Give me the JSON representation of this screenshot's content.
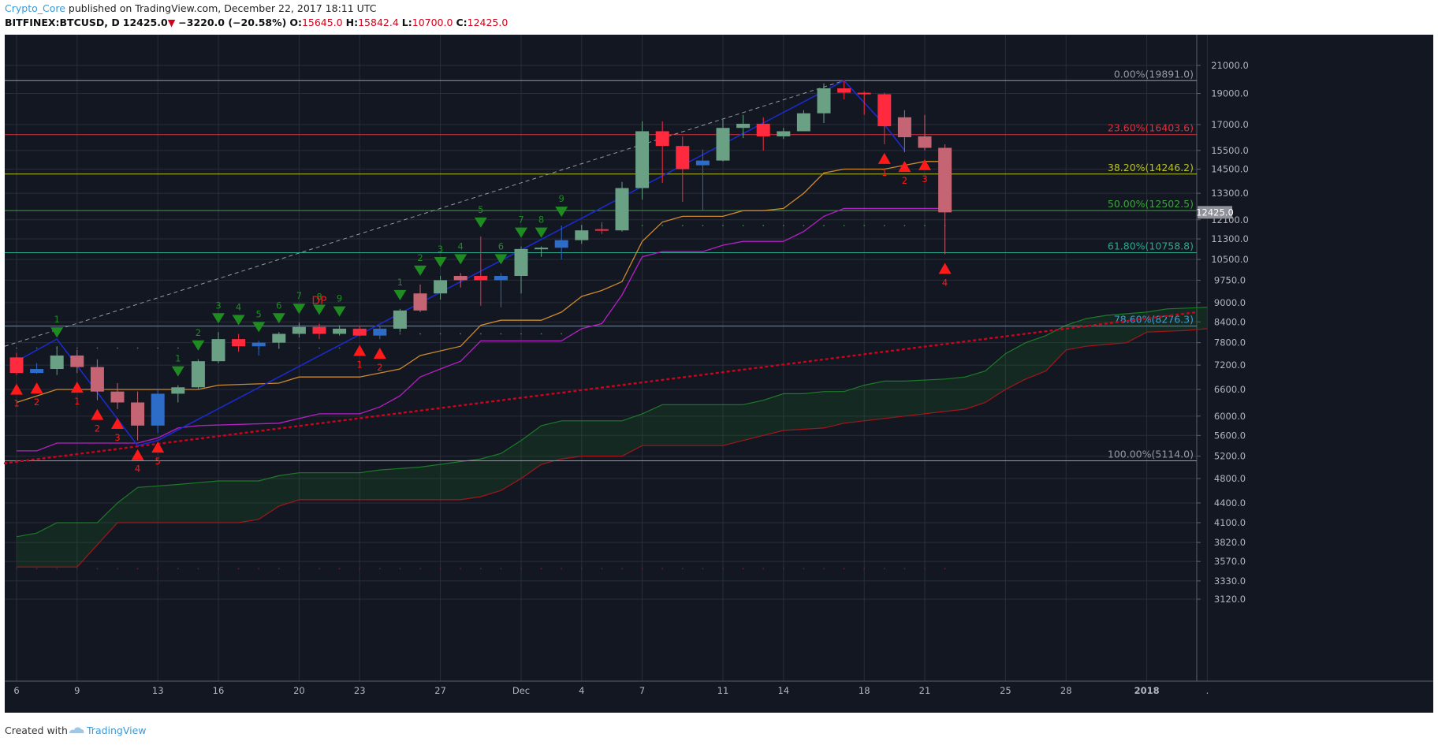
{
  "header": {
    "author": "Crypto_Core",
    "published_text": "published on TradingView.com, December 22, 2017 18:11 UTC",
    "symbol": "BITFINEX:BTCUSD, D",
    "last": "12425.0",
    "change": "−3220.0 (−20.58%)",
    "o_label": "O:",
    "o_value": "15645.0",
    "h_label": "H:",
    "h_value": "15842.4",
    "l_label": "L:",
    "l_value": "10700.0",
    "c_label": "C:",
    "c_value": "12425.0"
  },
  "footer": {
    "created_with": "Created with",
    "brand": "TradingView"
  },
  "colors": {
    "bg": "#131722",
    "grid": "#2a2e39",
    "up": "#6aa084",
    "down": "#ff2a3d",
    "up_alt": "#2d6cc7",
    "down_alt": "#c56472",
    "tenkan": "#cc8a2d",
    "kijun": "#b61fc7",
    "cloud_up": "#1d7a28",
    "cloud_down": "#a3161a",
    "td_buy": "#1f8c22",
    "td_sell": "#ff1a1a",
    "trend_red": "#d0021b",
    "dotted_fib": "#9598a1"
  },
  "chart_data": {
    "type": "candlestick",
    "symbol": "BITFINEX:BTCUSD",
    "interval": "D",
    "price_scale": "log",
    "y_ticks": [
      21000,
      19000,
      17000,
      15500,
      14500,
      13300,
      12100,
      11300,
      10500,
      9750,
      9000,
      8400,
      7800,
      7200,
      6600,
      6000,
      5600,
      5200,
      4800,
      4400,
      4100,
      3820,
      3570,
      3330,
      3120
    ],
    "y_tick_labels": [
      "21000.0",
      "19000.0",
      "17000.0",
      "15500.0",
      "14500.0",
      "13300.0",
      "12100.0",
      "11300.0",
      "10500.0",
      "9750.0",
      "9000.0",
      "8400.0",
      "7800.0",
      "7200.0",
      "6600.0",
      "6000.0",
      "5600.0",
      "5200.0",
      "4800.0",
      "4400.0",
      "4100.0",
      "3820.0",
      "3570.0",
      "3330.0",
      "3120.0"
    ],
    "last_price_label": "12425.0",
    "x_labels": [
      {
        "i": 0,
        "t": "6"
      },
      {
        "i": 3,
        "t": "9"
      },
      {
        "i": 7,
        "t": "13"
      },
      {
        "i": 10,
        "t": "16"
      },
      {
        "i": 14,
        "t": "20"
      },
      {
        "i": 17,
        "t": "23"
      },
      {
        "i": 21,
        "t": "27"
      },
      {
        "i": 25,
        "t": "Dec"
      },
      {
        "i": 28,
        "t": "4"
      },
      {
        "i": 31,
        "t": "7"
      },
      {
        "i": 35,
        "t": "11"
      },
      {
        "i": 38,
        "t": "14"
      },
      {
        "i": 42,
        "t": "18"
      },
      {
        "i": 45,
        "t": "21"
      },
      {
        "i": 49,
        "t": "25"
      },
      {
        "i": 52,
        "t": "28"
      },
      {
        "i": 56,
        "t": "2018"
      },
      {
        "i": 59,
        "t": "."
      }
    ],
    "fib_levels": [
      {
        "label": "0.00%(19891.0)",
        "price": 19891,
        "color": "#9598a1"
      },
      {
        "label": "23.60%(16403.6)",
        "price": 16403.6,
        "color": "#e0313e"
      },
      {
        "label": "38.20%(14246.2)",
        "price": 14246.2,
        "color": "#b7c02a"
      },
      {
        "label": "50.00%(12502.5)",
        "price": 12502.5,
        "color": "#3aa63a"
      },
      {
        "label": "61.80%(10758.8)",
        "price": 10758.8,
        "color": "#2aa88e"
      },
      {
        "label": "78.60%(8276.3)",
        "price": 8276.3,
        "color": "#3f9dd6"
      },
      {
        "label": "100.00%(5114.0)",
        "price": 5114,
        "color": "#9598a1"
      }
    ],
    "candles": [
      {
        "o": 7400,
        "h": 7520,
        "l": 6950,
        "c": 7000,
        "col": "down"
      },
      {
        "o": 7000,
        "h": 7250,
        "l": 6980,
        "c": 7100,
        "col": "up_alt"
      },
      {
        "o": 7100,
        "h": 7700,
        "l": 6950,
        "c": 7450,
        "col": "up"
      },
      {
        "o": 7450,
        "h": 7600,
        "l": 7000,
        "c": 7150,
        "col": "down_alt"
      },
      {
        "o": 7150,
        "h": 7350,
        "l": 6350,
        "c": 6550,
        "col": "down_alt"
      },
      {
        "o": 6550,
        "h": 6750,
        "l": 6150,
        "c": 6300,
        "col": "down_alt"
      },
      {
        "o": 6300,
        "h": 6550,
        "l": 5500,
        "c": 5800,
        "col": "down_alt"
      },
      {
        "o": 5800,
        "h": 6600,
        "l": 5650,
        "c": 6500,
        "col": "up_alt"
      },
      {
        "o": 6500,
        "h": 6700,
        "l": 6300,
        "c": 6650,
        "col": "up"
      },
      {
        "o": 6650,
        "h": 7350,
        "l": 6600,
        "c": 7300,
        "col": "up"
      },
      {
        "o": 7300,
        "h": 8100,
        "l": 7250,
        "c": 7900,
        "col": "up"
      },
      {
        "o": 7900,
        "h": 8050,
        "l": 7550,
        "c": 7700,
        "col": "down"
      },
      {
        "o": 7700,
        "h": 7850,
        "l": 7450,
        "c": 7800,
        "col": "up_alt"
      },
      {
        "o": 7800,
        "h": 8100,
        "l": 7650,
        "c": 8050,
        "col": "up"
      },
      {
        "o": 8050,
        "h": 8380,
        "l": 7950,
        "c": 8250,
        "col": "up"
      },
      {
        "o": 8250,
        "h": 8350,
        "l": 7900,
        "c": 8050,
        "col": "down"
      },
      {
        "o": 8050,
        "h": 8300,
        "l": 8000,
        "c": 8200,
        "col": "up"
      },
      {
        "o": 8200,
        "h": 8280,
        "l": 7980,
        "c": 8000,
        "col": "down"
      },
      {
        "o": 8000,
        "h": 8260,
        "l": 7900,
        "c": 8200,
        "col": "up_alt"
      },
      {
        "o": 8200,
        "h": 8800,
        "l": 8100,
        "c": 8750,
        "col": "up"
      },
      {
        "o": 8750,
        "h": 9600,
        "l": 8700,
        "c": 9300,
        "col": "down_alt"
      },
      {
        "o": 9300,
        "h": 9900,
        "l": 9100,
        "c": 9750,
        "col": "up"
      },
      {
        "o": 9750,
        "h": 10000,
        "l": 9500,
        "c": 9900,
        "col": "down_alt"
      },
      {
        "o": 9900,
        "h": 11400,
        "l": 8900,
        "c": 9750,
        "col": "down"
      },
      {
        "o": 9750,
        "h": 10000,
        "l": 8850,
        "c": 9900,
        "col": "up_alt"
      },
      {
        "o": 9900,
        "h": 11000,
        "l": 9300,
        "c": 10900,
        "col": "up"
      },
      {
        "o": 10900,
        "h": 11000,
        "l": 10600,
        "c": 10950,
        "col": "up"
      },
      {
        "o": 10950,
        "h": 11850,
        "l": 10500,
        "c": 11250,
        "col": "up_alt"
      },
      {
        "o": 11250,
        "h": 11850,
        "l": 11100,
        "c": 11650,
        "col": "up"
      },
      {
        "o": 11700,
        "h": 12000,
        "l": 11500,
        "c": 11650,
        "col": "down"
      },
      {
        "o": 11650,
        "h": 13850,
        "l": 11600,
        "c": 13550,
        "col": "up"
      },
      {
        "o": 13550,
        "h": 17200,
        "l": 13000,
        "c": 16600,
        "col": "up"
      },
      {
        "o": 16600,
        "h": 17200,
        "l": 13800,
        "c": 15750,
        "col": "down"
      },
      {
        "o": 15750,
        "h": 16300,
        "l": 12900,
        "c": 14500,
        "col": "down"
      },
      {
        "o": 14700,
        "h": 15550,
        "l": 12500,
        "c": 14950,
        "col": "up_alt"
      },
      {
        "o": 14950,
        "h": 17300,
        "l": 14900,
        "c": 16800,
        "col": "up"
      },
      {
        "o": 16800,
        "h": 17600,
        "l": 16200,
        "c": 17050,
        "col": "up"
      },
      {
        "o": 17050,
        "h": 17450,
        "l": 15500,
        "c": 16300,
        "col": "down"
      },
      {
        "o": 16300,
        "h": 16800,
        "l": 16150,
        "c": 16600,
        "col": "up"
      },
      {
        "o": 16600,
        "h": 17900,
        "l": 16600,
        "c": 17700,
        "col": "up"
      },
      {
        "o": 17700,
        "h": 19700,
        "l": 17100,
        "c": 19350,
        "col": "up"
      },
      {
        "o": 19350,
        "h": 19891,
        "l": 18600,
        "c": 19050,
        "col": "down"
      },
      {
        "o": 19050,
        "h": 19150,
        "l": 17600,
        "c": 18950,
        "col": "down"
      },
      {
        "o": 18950,
        "h": 19050,
        "l": 15850,
        "c": 16900,
        "col": "down"
      },
      {
        "o": 17450,
        "h": 17900,
        "l": 15400,
        "c": 16250,
        "col": "down_alt"
      },
      {
        "o": 16300,
        "h": 17600,
        "l": 15500,
        "c": 15645,
        "col": "down_alt"
      },
      {
        "o": 15645,
        "h": 15842.4,
        "l": 10700,
        "c": 12425,
        "col": "down_alt"
      }
    ],
    "tenkan": [
      [
        0,
        6300
      ],
      [
        2,
        6600
      ],
      [
        5,
        6600
      ],
      [
        9,
        6600
      ],
      [
        10,
        6700
      ],
      [
        13,
        6750
      ],
      [
        14,
        6900
      ],
      [
        17,
        6900
      ],
      [
        19,
        7100
      ],
      [
        20,
        7450
      ],
      [
        22,
        7700
      ],
      [
        23,
        8300
      ],
      [
        24,
        8450
      ],
      [
        26,
        8450
      ],
      [
        27,
        8700
      ],
      [
        28,
        9200
      ],
      [
        29,
        9400
      ],
      [
        30,
        9700
      ],
      [
        31,
        11200
      ],
      [
        32,
        12000
      ],
      [
        33,
        12250
      ],
      [
        35,
        12250
      ],
      [
        36,
        12500
      ],
      [
        37,
        12500
      ],
      [
        38,
        12600
      ],
      [
        39,
        13300
      ],
      [
        40,
        14300
      ],
      [
        41,
        14500
      ],
      [
        42,
        14500
      ],
      [
        43,
        14500
      ],
      [
        44,
        14700
      ],
      [
        45,
        14900
      ],
      [
        46,
        14900
      ]
    ],
    "kijun": [
      [
        0,
        5300
      ],
      [
        1,
        5300
      ],
      [
        2,
        5450
      ],
      [
        6,
        5450
      ],
      [
        7,
        5550
      ],
      [
        8,
        5750
      ],
      [
        9,
        5800
      ],
      [
        13,
        5850
      ],
      [
        14,
        5950
      ],
      [
        15,
        6050
      ],
      [
        17,
        6050
      ],
      [
        18,
        6200
      ],
      [
        19,
        6450
      ],
      [
        20,
        6900
      ],
      [
        21,
        7100
      ],
      [
        22,
        7300
      ],
      [
        23,
        7850
      ],
      [
        27,
        7850
      ],
      [
        28,
        8200
      ],
      [
        29,
        8350
      ],
      [
        30,
        9250
      ],
      [
        31,
        10600
      ],
      [
        32,
        10800
      ],
      [
        34,
        10800
      ],
      [
        35,
        11050
      ],
      [
        36,
        11200
      ],
      [
        37,
        11200
      ],
      [
        38,
        11200
      ],
      [
        39,
        11600
      ],
      [
        40,
        12250
      ],
      [
        41,
        12600
      ],
      [
        46,
        12600
      ]
    ],
    "cloud_a": [
      [
        0,
        3900
      ],
      [
        1,
        3950
      ],
      [
        2,
        4100
      ],
      [
        4,
        4100
      ],
      [
        5,
        4400
      ],
      [
        6,
        4650
      ],
      [
        8,
        4700
      ],
      [
        10,
        4760
      ],
      [
        12,
        4760
      ],
      [
        13,
        4850
      ],
      [
        14,
        4900
      ],
      [
        16,
        4900
      ],
      [
        17,
        4900
      ],
      [
        18,
        4950
      ],
      [
        20,
        5000
      ],
      [
        21,
        5050
      ],
      [
        22,
        5100
      ],
      [
        23,
        5150
      ],
      [
        24,
        5250
      ],
      [
        25,
        5500
      ],
      [
        26,
        5800
      ],
      [
        27,
        5900
      ],
      [
        30,
        5900
      ],
      [
        31,
        6050
      ],
      [
        32,
        6250
      ],
      [
        36,
        6250
      ],
      [
        37,
        6350
      ],
      [
        38,
        6500
      ],
      [
        39,
        6500
      ],
      [
        40,
        6550
      ],
      [
        41,
        6550
      ],
      [
        42,
        6700
      ],
      [
        43,
        6800
      ],
      [
        44,
        6800
      ],
      [
        46,
        6850
      ],
      [
        47,
        6900
      ],
      [
        48,
        7050
      ],
      [
        49,
        7500
      ],
      [
        50,
        7800
      ],
      [
        51,
        8000
      ],
      [
        52,
        8300
      ],
      [
        53,
        8500
      ],
      [
        54,
        8600
      ],
      [
        56,
        8700
      ],
      [
        57,
        8800
      ],
      [
        59,
        8850
      ]
    ],
    "cloud_b": [
      [
        0,
        3500
      ],
      [
        3,
        3500
      ],
      [
        5,
        4100
      ],
      [
        6,
        4100
      ],
      [
        11,
        4100
      ],
      [
        12,
        4150
      ],
      [
        13,
        4350
      ],
      [
        14,
        4450
      ],
      [
        21,
        4450
      ],
      [
        22,
        4450
      ],
      [
        23,
        4500
      ],
      [
        24,
        4600
      ],
      [
        25,
        4800
      ],
      [
        26,
        5050
      ],
      [
        27,
        5150
      ],
      [
        28,
        5200
      ],
      [
        30,
        5200
      ],
      [
        31,
        5400
      ],
      [
        32,
        5400
      ],
      [
        35,
        5400
      ],
      [
        36,
        5500
      ],
      [
        37,
        5600
      ],
      [
        38,
        5700
      ],
      [
        40,
        5750
      ],
      [
        41,
        5850
      ],
      [
        42,
        5900
      ],
      [
        43,
        5950
      ],
      [
        44,
        6000
      ],
      [
        46,
        6100
      ],
      [
        47,
        6150
      ],
      [
        48,
        6300
      ],
      [
        49,
        6600
      ],
      [
        50,
        6850
      ],
      [
        51,
        7050
      ],
      [
        52,
        7600
      ],
      [
        53,
        7700
      ],
      [
        55,
        7800
      ],
      [
        56,
        8100
      ],
      [
        58,
        8150
      ],
      [
        59,
        8200
      ]
    ],
    "zigzag": [
      [
        0,
        7300
      ],
      [
        2,
        7900
      ],
      [
        6,
        5400
      ],
      [
        7,
        5500
      ],
      [
        41,
        19891
      ],
      [
        43,
        17000
      ],
      [
        44,
        15500
      ]
    ],
    "td_buy": [
      {
        "i": 2,
        "n": "1"
      },
      {
        "i": 8,
        "n": "1"
      },
      {
        "i": 9,
        "n": "2"
      },
      {
        "i": 10,
        "n": "3"
      },
      {
        "i": 11,
        "n": "4"
      },
      {
        "i": 12,
        "n": "5"
      },
      {
        "i": 13,
        "n": "6"
      },
      {
        "i": 14,
        "n": "7"
      },
      {
        "i": 15,
        "n": "8"
      },
      {
        "i": 16,
        "n": "9"
      },
      {
        "i": 19,
        "n": "1"
      },
      {
        "i": 20,
        "n": "2"
      },
      {
        "i": 21,
        "n": "3"
      },
      {
        "i": 22,
        "n": "4"
      },
      {
        "i": 23,
        "n": "5"
      },
      {
        "i": 24,
        "n": "6"
      },
      {
        "i": 25,
        "n": "7"
      },
      {
        "i": 26,
        "n": "8"
      },
      {
        "i": 27,
        "n": "9"
      }
    ],
    "td_sell": [
      {
        "i": 0,
        "n": "1"
      },
      {
        "i": 1,
        "n": "2"
      },
      {
        "i": 3,
        "n": "1"
      },
      {
        "i": 4,
        "n": "2"
      },
      {
        "i": 5,
        "n": "3"
      },
      {
        "i": 6,
        "n": "4"
      },
      {
        "i": 7,
        "n": "5"
      },
      {
        "i": 17,
        "n": "1"
      },
      {
        "i": 18,
        "n": "2"
      },
      {
        "i": 43,
        "n": "1"
      },
      {
        "i": 44,
        "n": "2"
      },
      {
        "i": 45,
        "n": "3"
      },
      {
        "i": 46,
        "n": "4"
      }
    ],
    "annotation": "DP"
  }
}
